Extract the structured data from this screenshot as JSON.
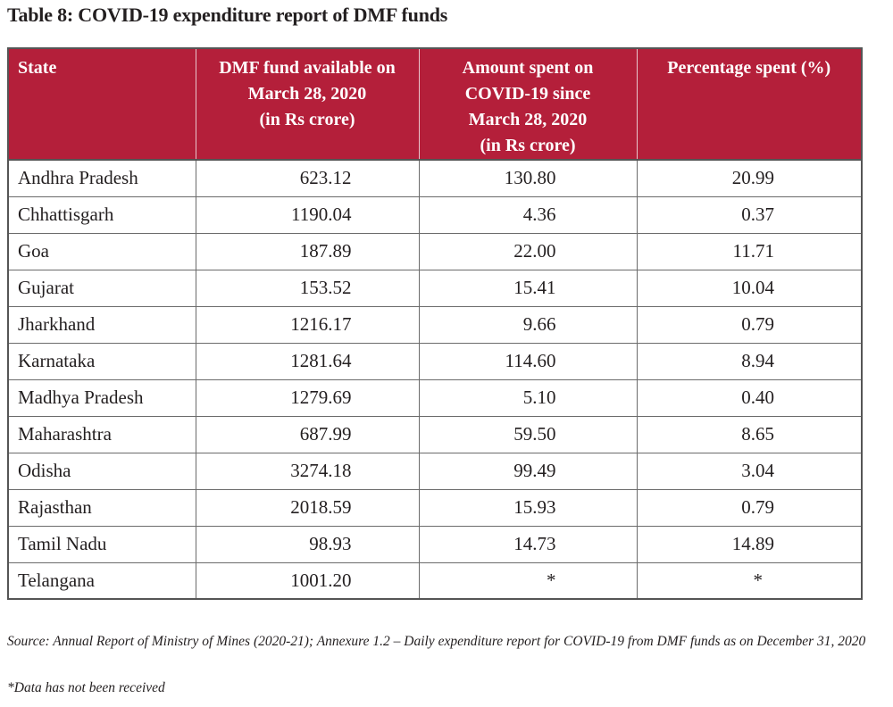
{
  "title": "Table 8: COVID-19 expenditure report of DMF funds",
  "colors": {
    "header_background": "#b41f3a",
    "header_text": "#ffffff",
    "border": "#555555",
    "body_text": "#231f20"
  },
  "table": {
    "headers": [
      "State",
      "DMF fund available on March 28, 2020 (in Rs crore)",
      "Amount spent on COVID-19 since March 28, 2020 (in Rs crore)",
      "Percentage spent (%)"
    ],
    "header_lines": [
      [
        "State"
      ],
      [
        "DMF fund available on",
        "March 28, 2020",
        "(in Rs crore)"
      ],
      [
        "Amount spent on",
        "COVID-19 since",
        "March 28, 2020",
        "(in Rs crore)"
      ],
      [
        "Percentage spent (%)"
      ]
    ],
    "rows": [
      {
        "state": "Andhra Pradesh",
        "fund": "623.12",
        "spent": "130.80",
        "percent": "20.99"
      },
      {
        "state": "Chhattisgarh",
        "fund": "1190.04",
        "spent": "4.36",
        "percent": "0.37"
      },
      {
        "state": "Goa",
        "fund": "187.89",
        "spent": "22.00",
        "percent": "11.71"
      },
      {
        "state": "Gujarat",
        "fund": "153.52",
        "spent": "15.41",
        "percent": "10.04"
      },
      {
        "state": "Jharkhand",
        "fund": "1216.17",
        "spent": "9.66",
        "percent": "0.79"
      },
      {
        "state": "Karnataka",
        "fund": "1281.64",
        "spent": "114.60",
        "percent": "8.94"
      },
      {
        "state": "Madhya Pradesh",
        "fund": "1279.69",
        "spent": "5.10",
        "percent": "0.40"
      },
      {
        "state": "Maharashtra",
        "fund": "687.99",
        "spent": "59.50",
        "percent": "8.65"
      },
      {
        "state": "Odisha",
        "fund": "3274.18",
        "spent": "99.49",
        "percent": "3.04"
      },
      {
        "state": "Rajasthan",
        "fund": "2018.59",
        "spent": "15.93",
        "percent": "0.79"
      },
      {
        "state": "Tamil Nadu",
        "fund": "98.93",
        "spent": "14.73",
        "percent": "14.89"
      },
      {
        "state": "Telangana",
        "fund": "1001.20",
        "spent": "*",
        "percent": "*"
      }
    ]
  },
  "source": "Source: Annual Report of Ministry of Mines (2020-21); Annexure 1.2 – Daily expenditure report for COVID-19 from DMF funds as on December 31, 2020",
  "footnote": "*Data has not been received"
}
